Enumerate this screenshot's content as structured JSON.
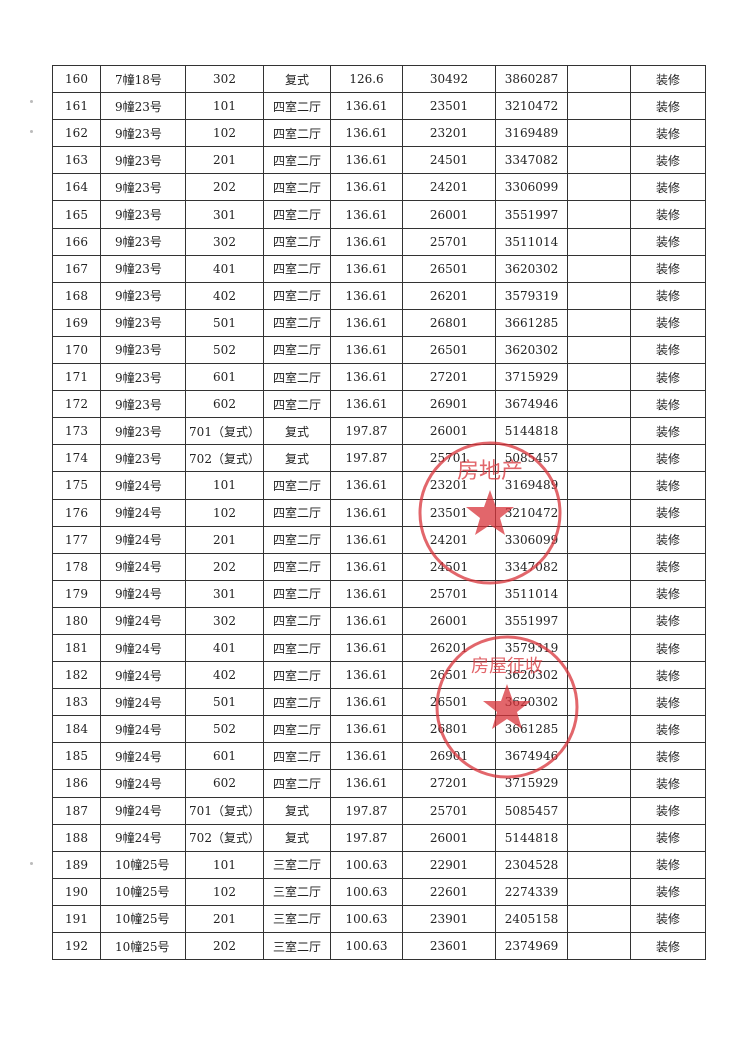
{
  "table": {
    "rows": [
      [
        "160",
        "7幢18号",
        "302",
        "复式",
        "126.6",
        "30492",
        "3860287",
        "",
        "装修"
      ],
      [
        "161",
        "9幢23号",
        "101",
        "四室二厅",
        "136.61",
        "23501",
        "3210472",
        "",
        "装修"
      ],
      [
        "162",
        "9幢23号",
        "102",
        "四室二厅",
        "136.61",
        "23201",
        "3169489",
        "",
        "装修"
      ],
      [
        "163",
        "9幢23号",
        "201",
        "四室二厅",
        "136.61",
        "24501",
        "3347082",
        "",
        "装修"
      ],
      [
        "164",
        "9幢23号",
        "202",
        "四室二厅",
        "136.61",
        "24201",
        "3306099",
        "",
        "装修"
      ],
      [
        "165",
        "9幢23号",
        "301",
        "四室二厅",
        "136.61",
        "26001",
        "3551997",
        "",
        "装修"
      ],
      [
        "166",
        "9幢23号",
        "302",
        "四室二厅",
        "136.61",
        "25701",
        "3511014",
        "",
        "装修"
      ],
      [
        "167",
        "9幢23号",
        "401",
        "四室二厅",
        "136.61",
        "26501",
        "3620302",
        "",
        "装修"
      ],
      [
        "168",
        "9幢23号",
        "402",
        "四室二厅",
        "136.61",
        "26201",
        "3579319",
        "",
        "装修"
      ],
      [
        "169",
        "9幢23号",
        "501",
        "四室二厅",
        "136.61",
        "26801",
        "3661285",
        "",
        "装修"
      ],
      [
        "170",
        "9幢23号",
        "502",
        "四室二厅",
        "136.61",
        "26501",
        "3620302",
        "",
        "装修"
      ],
      [
        "171",
        "9幢23号",
        "601",
        "四室二厅",
        "136.61",
        "27201",
        "3715929",
        "",
        "装修"
      ],
      [
        "172",
        "9幢23号",
        "602",
        "四室二厅",
        "136.61",
        "26901",
        "3674946",
        "",
        "装修"
      ],
      [
        "173",
        "9幢23号",
        "701（复式）",
        "复式",
        "197.87",
        "26001",
        "5144818",
        "",
        "装修"
      ],
      [
        "174",
        "9幢23号",
        "702（复式）",
        "复式",
        "197.87",
        "25701",
        "5085457",
        "",
        "装修"
      ],
      [
        "175",
        "9幢24号",
        "101",
        "四室二厅",
        "136.61",
        "23201",
        "3169489",
        "",
        "装修"
      ],
      [
        "176",
        "9幢24号",
        "102",
        "四室二厅",
        "136.61",
        "23501",
        "3210472",
        "",
        "装修"
      ],
      [
        "177",
        "9幢24号",
        "201",
        "四室二厅",
        "136.61",
        "24201",
        "3306099",
        "",
        "装修"
      ],
      [
        "178",
        "9幢24号",
        "202",
        "四室二厅",
        "136.61",
        "24501",
        "3347082",
        "",
        "装修"
      ],
      [
        "179",
        "9幢24号",
        "301",
        "四室二厅",
        "136.61",
        "25701",
        "3511014",
        "",
        "装修"
      ],
      [
        "180",
        "9幢24号",
        "302",
        "四室二厅",
        "136.61",
        "26001",
        "3551997",
        "",
        "装修"
      ],
      [
        "181",
        "9幢24号",
        "401",
        "四室二厅",
        "136.61",
        "26201",
        "3579319",
        "",
        "装修"
      ],
      [
        "182",
        "9幢24号",
        "402",
        "四室二厅",
        "136.61",
        "26501",
        "3620302",
        "",
        "装修"
      ],
      [
        "183",
        "9幢24号",
        "501",
        "四室二厅",
        "136.61",
        "26501",
        "3620302",
        "",
        "装修"
      ],
      [
        "184",
        "9幢24号",
        "502",
        "四室二厅",
        "136.61",
        "26801",
        "3661285",
        "",
        "装修"
      ],
      [
        "185",
        "9幢24号",
        "601",
        "四室二厅",
        "136.61",
        "26901",
        "3674946",
        "",
        "装修"
      ],
      [
        "186",
        "9幢24号",
        "602",
        "四室二厅",
        "136.61",
        "27201",
        "3715929",
        "",
        "装修"
      ],
      [
        "187",
        "9幢24号",
        "701（复式）",
        "复式",
        "197.87",
        "25701",
        "5085457",
        "",
        "装修"
      ],
      [
        "188",
        "9幢24号",
        "702（复式）",
        "复式",
        "197.87",
        "26001",
        "5144818",
        "",
        "装修"
      ],
      [
        "189",
        "10幢25号",
        "101",
        "三室二厅",
        "100.63",
        "22901",
        "2304528",
        "",
        "装修"
      ],
      [
        "190",
        "10幢25号",
        "102",
        "三室二厅",
        "100.63",
        "22601",
        "2274339",
        "",
        "装修"
      ],
      [
        "191",
        "10幢25号",
        "201",
        "三室二厅",
        "100.63",
        "23901",
        "2405158",
        "",
        "装修"
      ],
      [
        "192",
        "10幢25号",
        "202",
        "三室二厅",
        "100.63",
        "23601",
        "2374969",
        "",
        "装修"
      ]
    ]
  },
  "stamps": {
    "color": "#d9333a",
    "text_1": "房地产",
    "text_2": "房屋征收"
  }
}
